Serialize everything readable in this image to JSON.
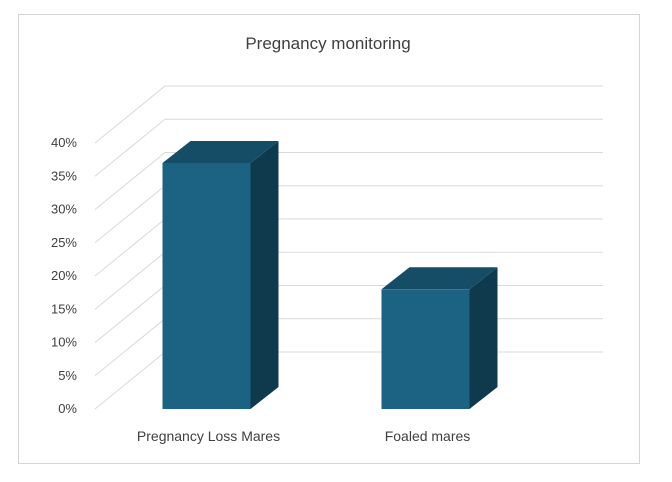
{
  "chart_data": {
    "type": "bar",
    "title": "Pregnancy monitoring",
    "categories": [
      "Pregnancy Loss Mares",
      "Foaled mares"
    ],
    "values": [
      0.37,
      0.18
    ],
    "ylim": [
      0,
      0.4
    ],
    "ytick_values": [
      0,
      0.05,
      0.1,
      0.15,
      0.2,
      0.25,
      0.3,
      0.35,
      0.4
    ],
    "ytick_labels": [
      "0%",
      "5%",
      "10%",
      "15%",
      "20%",
      "25%",
      "30%",
      "35%",
      "40%"
    ],
    "xlabel": "",
    "ylabel": "",
    "grid": true,
    "three_d": true,
    "colors": {
      "front": "#1b6283",
      "top": "#154d66",
      "side": "#0f3a4d",
      "grid": "#d9d9d9",
      "text": "#404040"
    }
  }
}
